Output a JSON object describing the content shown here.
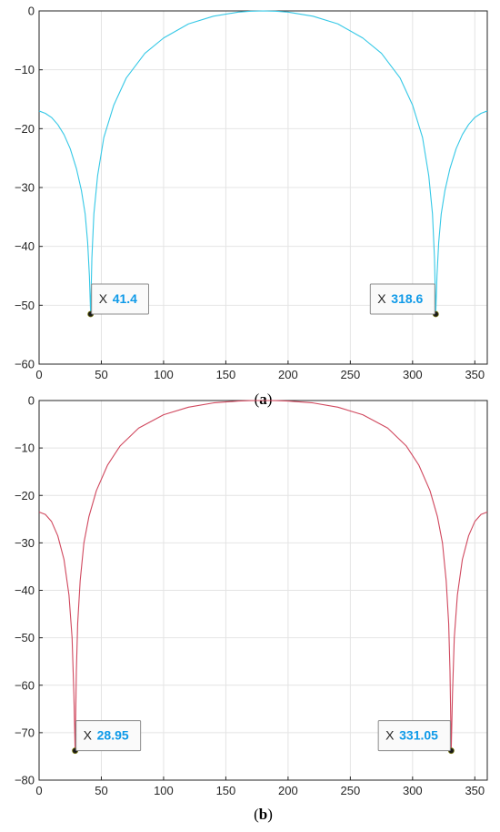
{
  "chart_data": [
    {
      "id": "a",
      "type": "line",
      "subcaption": "a",
      "xlim": [
        0,
        360
      ],
      "ylim": [
        -60,
        0
      ],
      "xticks": [
        0,
        50,
        100,
        150,
        200,
        250,
        300,
        350
      ],
      "yticks": [
        0,
        -10,
        -20,
        -30,
        -40,
        -50,
        -60
      ],
      "grid": true,
      "series": [
        {
          "color": "#35c8e6",
          "x": [
            0,
            5,
            10,
            15,
            20,
            25,
            30,
            34,
            37,
            39,
            40.4,
            41.4,
            42.4,
            44,
            47,
            52,
            60,
            70,
            85,
            100,
            120,
            140,
            160,
            170,
            180,
            190,
            200,
            220,
            240,
            260,
            275,
            290,
            300,
            308,
            313,
            316,
            317.6,
            318.6,
            319.6,
            321,
            323,
            326,
            330,
            335,
            340,
            345,
            350,
            355,
            360
          ],
          "y": [
            -17,
            -17.4,
            -18.1,
            -19.3,
            -21,
            -23.4,
            -26.8,
            -30.5,
            -34.5,
            -39.3,
            -45,
            -51.5,
            -42,
            -34.5,
            -28,
            -21.5,
            -16,
            -11.4,
            -7.2,
            -4.6,
            -2.2,
            -0.9,
            -0.2,
            -0.05,
            0,
            -0.05,
            -0.2,
            -0.9,
            -2.2,
            -4.6,
            -7.2,
            -11.4,
            -16,
            -21.5,
            -28,
            -34.5,
            -42,
            -51.5,
            -45,
            -39.3,
            -34.5,
            -30.5,
            -26.8,
            -23.4,
            -21,
            -19.3,
            -18.1,
            -17.4,
            -17
          ]
        }
      ],
      "datatips": [
        {
          "x_label": "X",
          "value": "41.4",
          "x": 41.4,
          "y": -51.5
        },
        {
          "x_label": "X",
          "value": "318.6",
          "x": 318.6,
          "y": -51.5
        }
      ]
    },
    {
      "id": "b",
      "type": "line",
      "subcaption": "b",
      "xlim": [
        0,
        360
      ],
      "ylim": [
        -80,
        0
      ],
      "xticks": [
        0,
        50,
        100,
        150,
        200,
        250,
        300,
        350
      ],
      "yticks": [
        0,
        -10,
        -20,
        -30,
        -40,
        -50,
        -60,
        -70,
        -80
      ],
      "grid": true,
      "series": [
        {
          "color": "#d0485e",
          "x": [
            0,
            5,
            10,
            15,
            20,
            24,
            26.5,
            27.95,
            28.95,
            29.95,
            31,
            33,
            36,
            40,
            46,
            55,
            65,
            80,
            100,
            120,
            140,
            160,
            170,
            180,
            190,
            200,
            220,
            240,
            260,
            280,
            295,
            305,
            314,
            320,
            324,
            327,
            329,
            330.05,
            331.05,
            332.05,
            333.5,
            336,
            340,
            345,
            350,
            355,
            360
          ],
          "y": [
            -23.5,
            -24,
            -25.5,
            -28.5,
            -33.5,
            -41,
            -50,
            -62,
            -73.8,
            -57,
            -47,
            -38,
            -30,
            -24.5,
            -19,
            -13.6,
            -9.6,
            -5.8,
            -3,
            -1.4,
            -0.5,
            -0.1,
            -0.02,
            0,
            -0.02,
            -0.1,
            -0.5,
            -1.4,
            -3,
            -5.8,
            -9.6,
            -13.6,
            -19,
            -24.5,
            -30,
            -38,
            -47,
            -57,
            -73.8,
            -62,
            -50,
            -41,
            -33.5,
            -28.5,
            -25.5,
            -24,
            -23.5
          ]
        }
      ],
      "datatips": [
        {
          "x_label": "X",
          "value": "28.95",
          "x": 28.95,
          "y": -73.8
        },
        {
          "x_label": "X",
          "value": "331.05",
          "x": 331.05,
          "y": -73.8
        }
      ]
    }
  ]
}
